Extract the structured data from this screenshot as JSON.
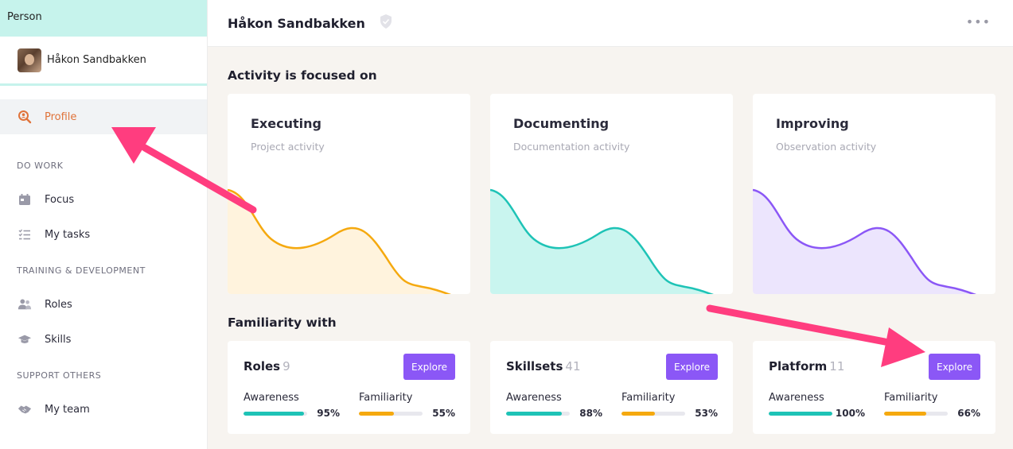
{
  "sidebar": {
    "header": "Person",
    "user_name": "Håkon Sandbakken",
    "items": {
      "profile": "Profile",
      "focus": "Focus",
      "my_tasks": "My tasks",
      "roles": "Roles",
      "skills": "Skills",
      "my_team": "My team"
    },
    "sections": {
      "do_work": "DO WORK",
      "training": "TRAINING & DEVELOPMENT",
      "support": "SUPPORT OTHERS"
    }
  },
  "topbar": {
    "title": "Håkon Sandbakken",
    "more": "•••"
  },
  "activity": {
    "heading": "Activity is focused on",
    "cards": [
      {
        "title": "Executing",
        "subtitle": "Project activity",
        "color": "#f5a90f",
        "fill": "#fff3dd"
      },
      {
        "title": "Documenting",
        "subtitle": "Documentation activity",
        "color": "#1ec3b6",
        "fill": "#c9f5ef"
      },
      {
        "title": "Improving",
        "subtitle": "Observation activity",
        "color": "#8b57f6",
        "fill": "#ece5fd"
      }
    ]
  },
  "familiarity": {
    "heading": "Familiarity with",
    "explore_label": "Explore",
    "awareness_label": "Awareness",
    "familiarity_label": "Familiarity",
    "cards": [
      {
        "title": "Roles",
        "count": "9",
        "awareness": 0.95,
        "awareness_text": "95%",
        "familiarity": 0.55,
        "familiarity_text": "55%"
      },
      {
        "title": "Skillsets",
        "count": "41",
        "awareness": 0.88,
        "awareness_text": "88%",
        "familiarity": 0.53,
        "familiarity_text": "53%"
      },
      {
        "title": "Platform",
        "count": "11",
        "awareness": 1.0,
        "awareness_text": "100%",
        "familiarity": 0.66,
        "familiarity_text": "66%"
      }
    ]
  },
  "colors": {
    "awareness_bar": "#1ec3b6",
    "familiarity_bar": "#f5a90f",
    "accent": "#8b57f6",
    "arrow": "#ff3d7f"
  }
}
